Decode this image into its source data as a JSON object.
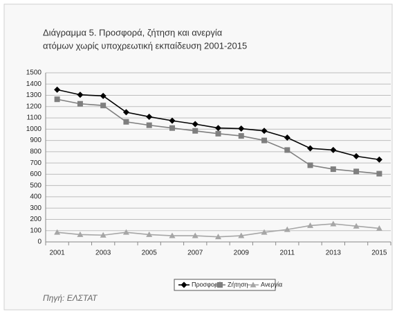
{
  "chart_data": {
    "type": "line",
    "title": [
      "Διάγραμμα 5.   Προσφορά, ζήτηση και ανεργία",
      "ατόμων χωρίς υποχρεωτική εκπαίδευση 2001-2015"
    ],
    "categories": [
      "2001",
      null,
      "2003",
      null,
      "2005",
      null,
      "2007",
      null,
      "2009",
      null,
      "2011",
      null,
      "2013",
      null,
      "2015"
    ],
    "series": [
      {
        "name": "Προσφορά",
        "color": "#000000",
        "marker": "diamond",
        "values": [
          1350,
          1305,
          1295,
          1150,
          1110,
          1075,
          1045,
          1010,
          1005,
          985,
          925,
          830,
          815,
          760,
          730
        ]
      },
      {
        "name": "Ζήτηση",
        "color": "#7f7f7f",
        "marker": "square",
        "values": [
          1265,
          1225,
          1210,
          1065,
          1035,
          1010,
          985,
          960,
          940,
          900,
          815,
          680,
          645,
          625,
          605
        ]
      },
      {
        "name": "Ανεργία",
        "color": "#a6a6a6",
        "marker": "triangle",
        "values": [
          85,
          65,
          60,
          85,
          65,
          55,
          55,
          45,
          55,
          85,
          110,
          145,
          160,
          140,
          120
        ]
      }
    ],
    "ylim": [
      0,
      1500
    ],
    "yticks": [
      0,
      100,
      200,
      300,
      400,
      500,
      600,
      700,
      800,
      900,
      1000,
      1100,
      1200,
      1300,
      1400,
      1500
    ],
    "grid": true,
    "legend": "bottom",
    "source": "Πηγή: ΕΛΣΤΑΤ"
  }
}
